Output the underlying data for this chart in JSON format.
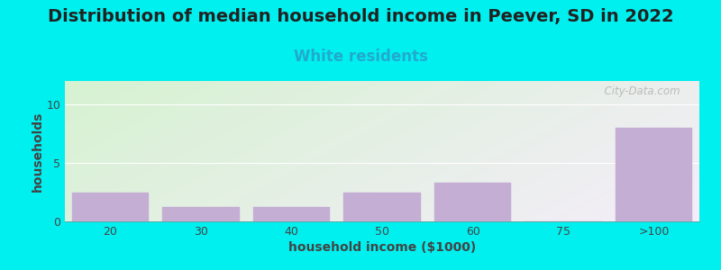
{
  "title": "Distribution of median household income in Peever, SD in 2022",
  "subtitle": "White residents",
  "xlabel": "household income ($1000)",
  "ylabel": "households",
  "bar_labels": [
    "20",
    "30",
    "40",
    "50",
    "60",
    "75",
    ">100"
  ],
  "bar_values": [
    2.5,
    1.2,
    1.2,
    2.5,
    3.3,
    0,
    8.0
  ],
  "bar_color": "#c4aed4",
  "bar_edgecolor": "#c4aed4",
  "ylim": [
    0,
    12
  ],
  "yticks": [
    0,
    5,
    10
  ],
  "background_outer": "#00f0f0",
  "bg_gradient_topleft": "#d8f0d0",
  "bg_gradient_bottomright": "#f0ecf8",
  "title_fontsize": 14,
  "subtitle_fontsize": 12,
  "subtitle_color": "#22aacc",
  "axis_label_fontsize": 10,
  "tick_fontsize": 9,
  "watermark": "  City-Data.com"
}
